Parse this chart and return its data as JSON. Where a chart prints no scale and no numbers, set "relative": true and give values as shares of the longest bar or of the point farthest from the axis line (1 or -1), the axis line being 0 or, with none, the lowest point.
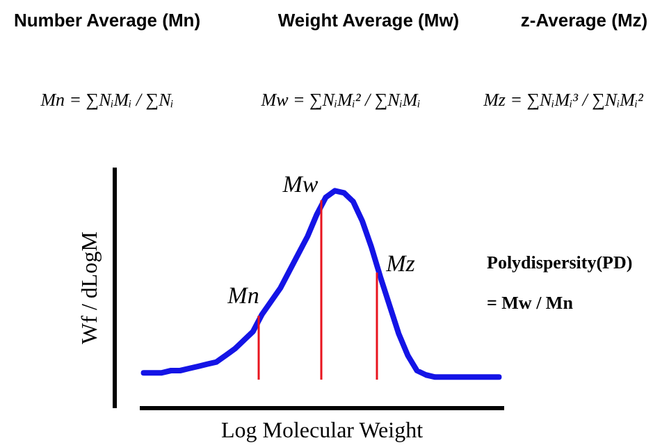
{
  "chart_data": {
    "type": "line",
    "relative": true,
    "xlabel": "Log Molecular Weight",
    "ylabel": "Wf / dLogM",
    "categories": [
      null,
      null,
      null,
      null,
      null,
      null,
      null,
      null,
      null,
      null,
      null,
      null,
      null,
      null,
      null,
      null,
      null,
      null,
      null,
      null,
      null,
      null,
      null,
      null,
      null,
      null,
      null,
      null,
      null,
      null,
      null,
      null,
      null,
      null,
      null,
      null,
      null,
      null,
      null,
      null
    ],
    "series": [
      {
        "color": "#1414e6",
        "values": [
          0.16,
          0.16,
          0.16,
          0.17,
          0.17,
          0.18,
          0.19,
          0.2,
          0.21,
          0.24,
          0.27,
          0.31,
          0.35,
          0.43,
          0.49,
          0.55,
          0.63,
          0.71,
          0.79,
          0.89,
          0.97,
          1.0,
          0.99,
          0.95,
          0.86,
          0.74,
          0.6,
          0.47,
          0.34,
          0.24,
          0.17,
          0.15,
          0.14,
          0.14,
          0.14,
          0.14,
          0.14,
          0.14,
          0.14,
          0.14
        ]
      }
    ],
    "annotations": [
      "Number Average (Mn)",
      "Weight Average (Mw)",
      "z-Average (Mz)",
      "Mn = ∑NᵢMᵢ / ∑Nᵢ",
      "Mw = ∑NᵢMᵢ² / ∑NᵢMᵢ",
      "Mz = ∑NᵢMᵢ³ / ∑NᵢMᵢ²",
      "Mn",
      "Mw",
      "Mz",
      "Polydispersity(PD)",
      "= Mw / Mn"
    ]
  }
}
